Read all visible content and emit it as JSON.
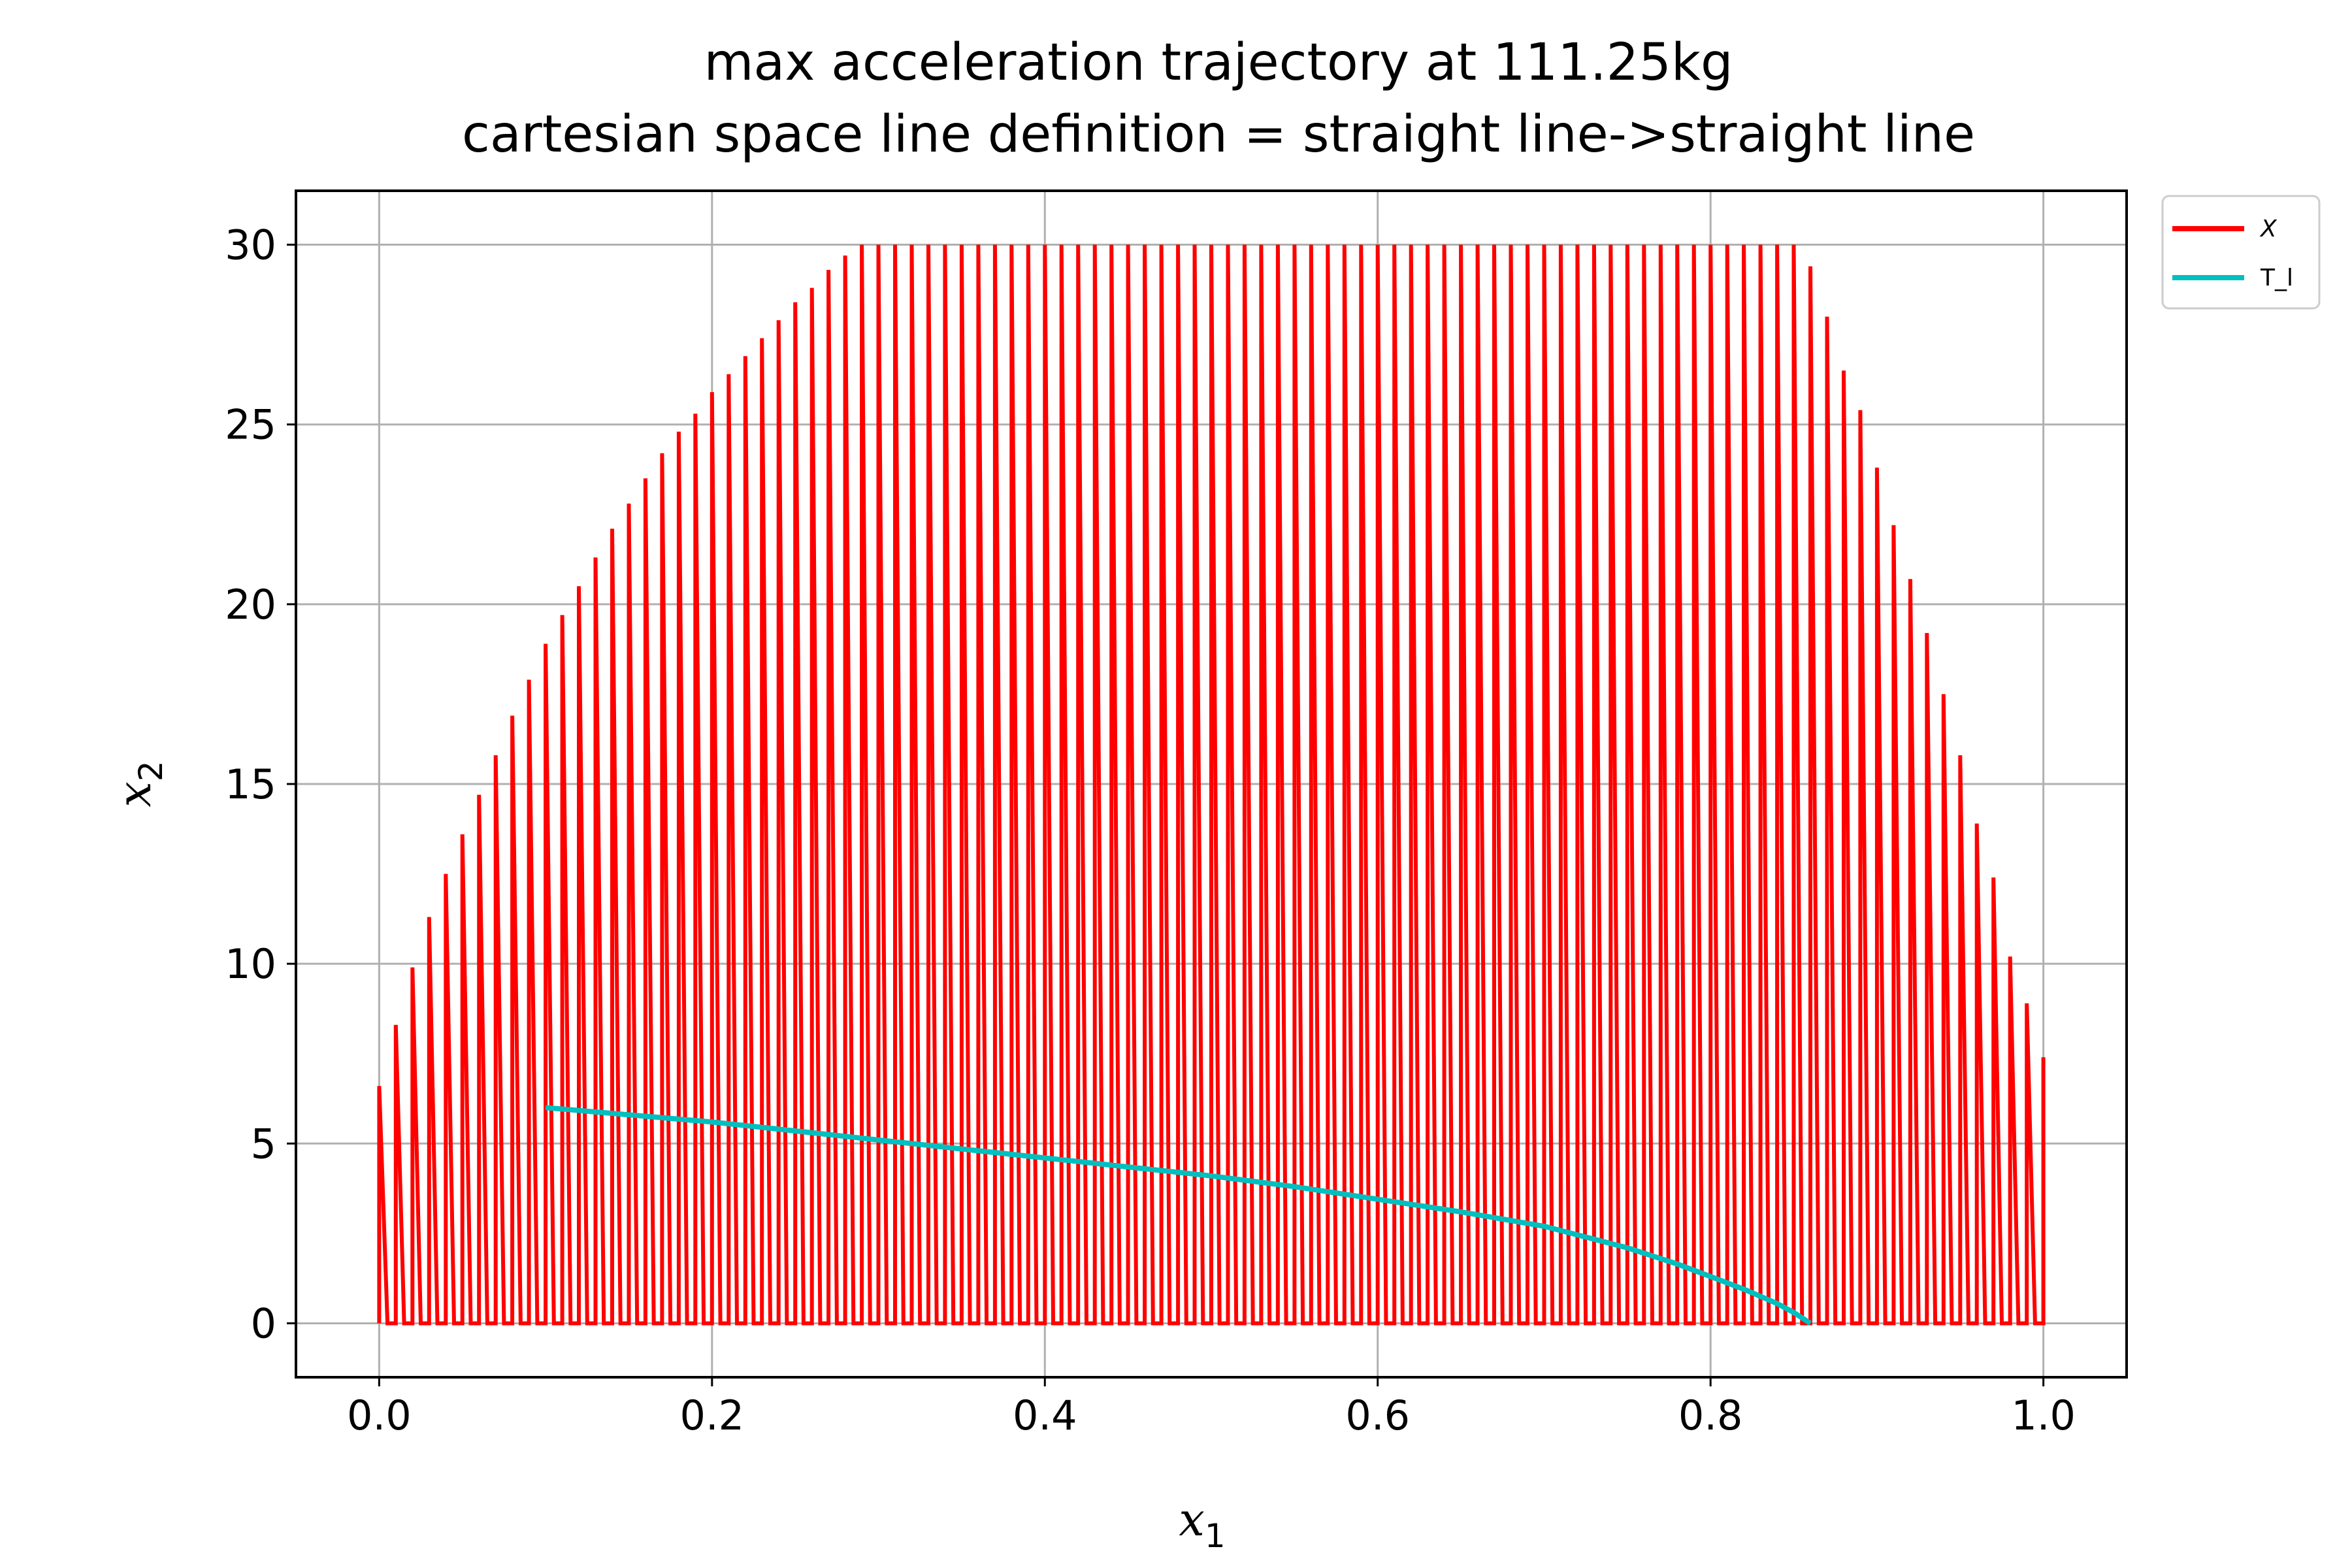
{
  "chart_data": {
    "type": "line",
    "title_line1": "max acceleration trajectory at 111.25kg",
    "title_line2": "cartesian space line definition = straight line->straight line",
    "xlabel": "x",
    "xlabel_sub": "1",
    "ylabel": "x",
    "ylabel_sub": "2",
    "xlim": [
      -0.05,
      1.05
    ],
    "ylim": [
      -1.5,
      31.5
    ],
    "xticks": [
      "0.0",
      "0.2",
      "0.4",
      "0.6",
      "0.8",
      "1.0"
    ],
    "yticks": [
      "0",
      "5",
      "10",
      "15",
      "20",
      "25",
      "30"
    ],
    "xtick_values": [
      0.0,
      0.2,
      0.4,
      0.6,
      0.8,
      1.0
    ],
    "ytick_values": [
      0,
      5,
      10,
      15,
      20,
      25,
      30
    ],
    "grid": true,
    "legend_position": "outside-top-right",
    "series": [
      {
        "name": "X",
        "color": "#ff0000",
        "description": "sawtooth: vertical rise from 0 to peak at x_i, then line down to 0 at x_i+0.01; peaks at x_i=0.00..1.00 step 0.01",
        "peak_x": [
          0.0,
          0.01,
          0.02,
          0.03,
          0.04,
          0.05,
          0.06,
          0.07,
          0.08,
          0.09,
          0.1,
          0.11,
          0.12,
          0.13,
          0.14,
          0.15,
          0.16,
          0.17,
          0.18,
          0.19,
          0.2,
          0.21,
          0.22,
          0.23,
          0.24,
          0.25,
          0.26,
          0.27,
          0.28,
          0.29,
          0.3,
          0.31,
          0.32,
          0.33,
          0.34,
          0.35,
          0.36,
          0.37,
          0.38,
          0.39,
          0.4,
          0.41,
          0.42,
          0.43,
          0.44,
          0.45,
          0.46,
          0.47,
          0.48,
          0.49,
          0.5,
          0.51,
          0.52,
          0.53,
          0.54,
          0.55,
          0.56,
          0.57,
          0.58,
          0.59,
          0.6,
          0.61,
          0.62,
          0.63,
          0.64,
          0.65,
          0.66,
          0.67,
          0.68,
          0.69,
          0.7,
          0.71,
          0.72,
          0.73,
          0.74,
          0.75,
          0.76,
          0.77,
          0.78,
          0.79,
          0.8,
          0.81,
          0.82,
          0.83,
          0.84,
          0.85,
          0.86,
          0.87,
          0.88,
          0.89,
          0.9,
          0.91,
          0.92,
          0.93,
          0.94,
          0.95,
          0.96,
          0.97,
          0.98,
          0.99,
          1.0
        ],
        "peak_y": [
          6.6,
          8.3,
          9.9,
          11.3,
          12.5,
          13.6,
          14.7,
          15.8,
          16.9,
          17.9,
          18.9,
          19.7,
          20.5,
          21.3,
          22.1,
          22.8,
          23.5,
          24.2,
          24.8,
          25.3,
          25.9,
          26.4,
          26.9,
          27.4,
          27.9,
          28.4,
          28.8,
          29.3,
          29.7,
          30.0,
          30.0,
          30.0,
          30.0,
          30.0,
          30.0,
          30.0,
          30.0,
          30.0,
          30.0,
          30.0,
          30.0,
          30.0,
          30.0,
          30.0,
          30.0,
          30.0,
          30.0,
          30.0,
          30.0,
          30.0,
          30.0,
          30.0,
          30.0,
          30.0,
          30.0,
          30.0,
          30.0,
          30.0,
          30.0,
          30.0,
          30.0,
          30.0,
          30.0,
          30.0,
          30.0,
          30.0,
          30.0,
          30.0,
          30.0,
          30.0,
          30.0,
          30.0,
          30.0,
          30.0,
          30.0,
          30.0,
          30.0,
          30.0,
          30.0,
          30.0,
          30.0,
          30.0,
          30.0,
          30.0,
          30.0,
          30.0,
          29.4,
          28.0,
          26.5,
          25.4,
          23.8,
          22.2,
          20.7,
          19.2,
          17.5,
          15.8,
          13.9,
          12.4,
          10.2,
          8.9,
          7.4
        ]
      },
      {
        "name": "T_l",
        "color": "#00bfbf",
        "x": [
          0.1,
          0.15,
          0.2,
          0.25,
          0.3,
          0.35,
          0.4,
          0.45,
          0.5,
          0.55,
          0.6,
          0.65,
          0.7,
          0.75,
          0.78,
          0.8,
          0.82,
          0.84,
          0.85,
          0.855,
          0.86
        ],
        "y": [
          6.0,
          5.8,
          5.6,
          5.35,
          5.1,
          4.85,
          4.6,
          4.35,
          4.1,
          3.8,
          3.45,
          3.1,
          2.7,
          2.1,
          1.65,
          1.3,
          0.95,
          0.55,
          0.3,
          0.15,
          0.0
        ]
      }
    ]
  },
  "legend": {
    "items": [
      {
        "label": "X",
        "color": "#ff0000"
      },
      {
        "label": "T_l",
        "color": "#00bfbf"
      }
    ]
  }
}
